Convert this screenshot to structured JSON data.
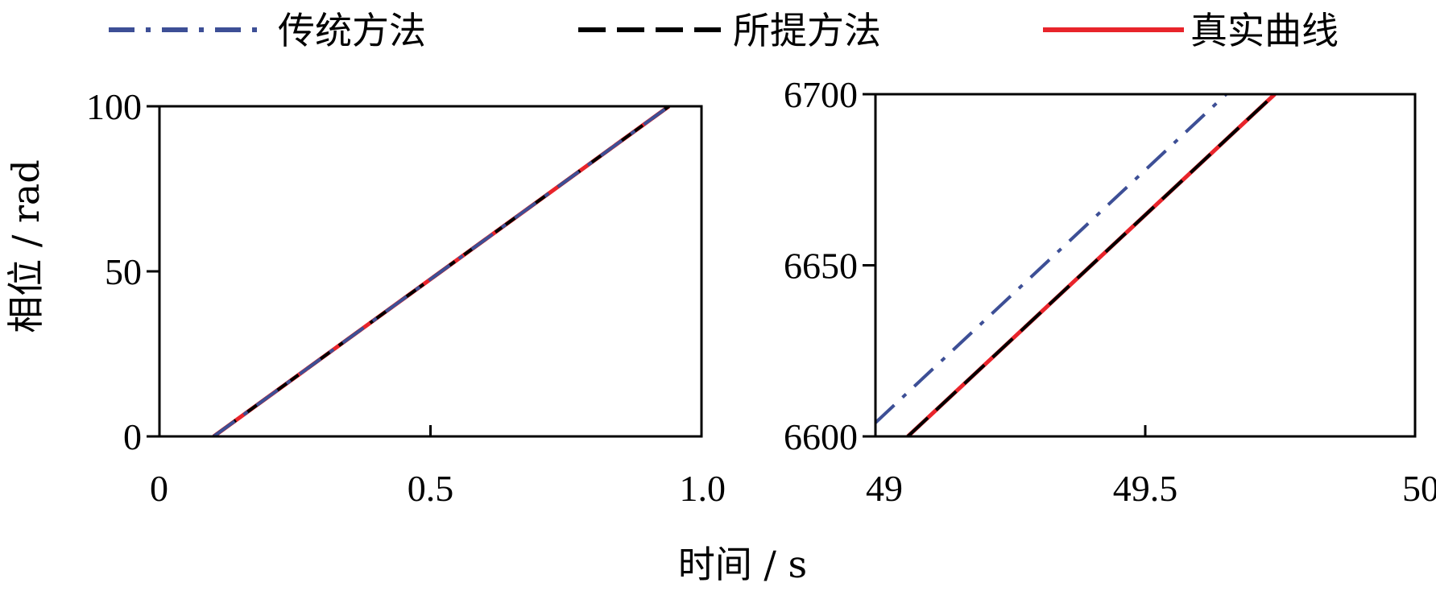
{
  "legend": [
    {
      "label": "传统方法",
      "color": "#3d4f96",
      "style": "dashdot"
    },
    {
      "label": "所提方法",
      "color": "#000000",
      "style": "dashed"
    },
    {
      "label": "真实曲线",
      "color": "#e8242b",
      "style": "solid"
    }
  ],
  "labels": {
    "xlabel": "时间 / s",
    "ylabel": "相位 / rad"
  },
  "chart_data": [
    {
      "type": "line",
      "xlim": [
        0,
        1.0
      ],
      "ylim": [
        0,
        100
      ],
      "xticks": [
        "0",
        "0.5",
        "1.0"
      ],
      "xtick_values": [
        0,
        0.5,
        1.0
      ],
      "yticks": [
        "0",
        "50",
        "100"
      ],
      "ytick_values": [
        0,
        50,
        100
      ],
      "series": [
        {
          "name": "真实曲线",
          "x": [
            0.1,
            0.94
          ],
          "y": [
            0,
            100
          ]
        },
        {
          "name": "所提方法",
          "x": [
            0.1,
            0.94
          ],
          "y": [
            0,
            100
          ]
        },
        {
          "name": "传统方法",
          "x": [
            0.1,
            0.94
          ],
          "y": [
            0,
            100
          ]
        }
      ]
    },
    {
      "type": "line",
      "xlim": [
        49,
        50
      ],
      "ylim": [
        6600,
        6700
      ],
      "xticks": [
        "49",
        "49.5",
        "50"
      ],
      "xtick_values": [
        49,
        49.5,
        50
      ],
      "yticks": [
        "6600",
        "6650",
        "6700"
      ],
      "ytick_values": [
        6600,
        6650,
        6700
      ],
      "series": [
        {
          "name": "真实曲线",
          "x": [
            49.06,
            49.74
          ],
          "y": [
            6600,
            6700
          ]
        },
        {
          "name": "所提方法",
          "x": [
            49.06,
            49.74
          ],
          "y": [
            6600,
            6700
          ]
        },
        {
          "name": "传统方法",
          "x": [
            49,
            49.65
          ],
          "y": [
            6604,
            6700
          ]
        }
      ]
    }
  ]
}
